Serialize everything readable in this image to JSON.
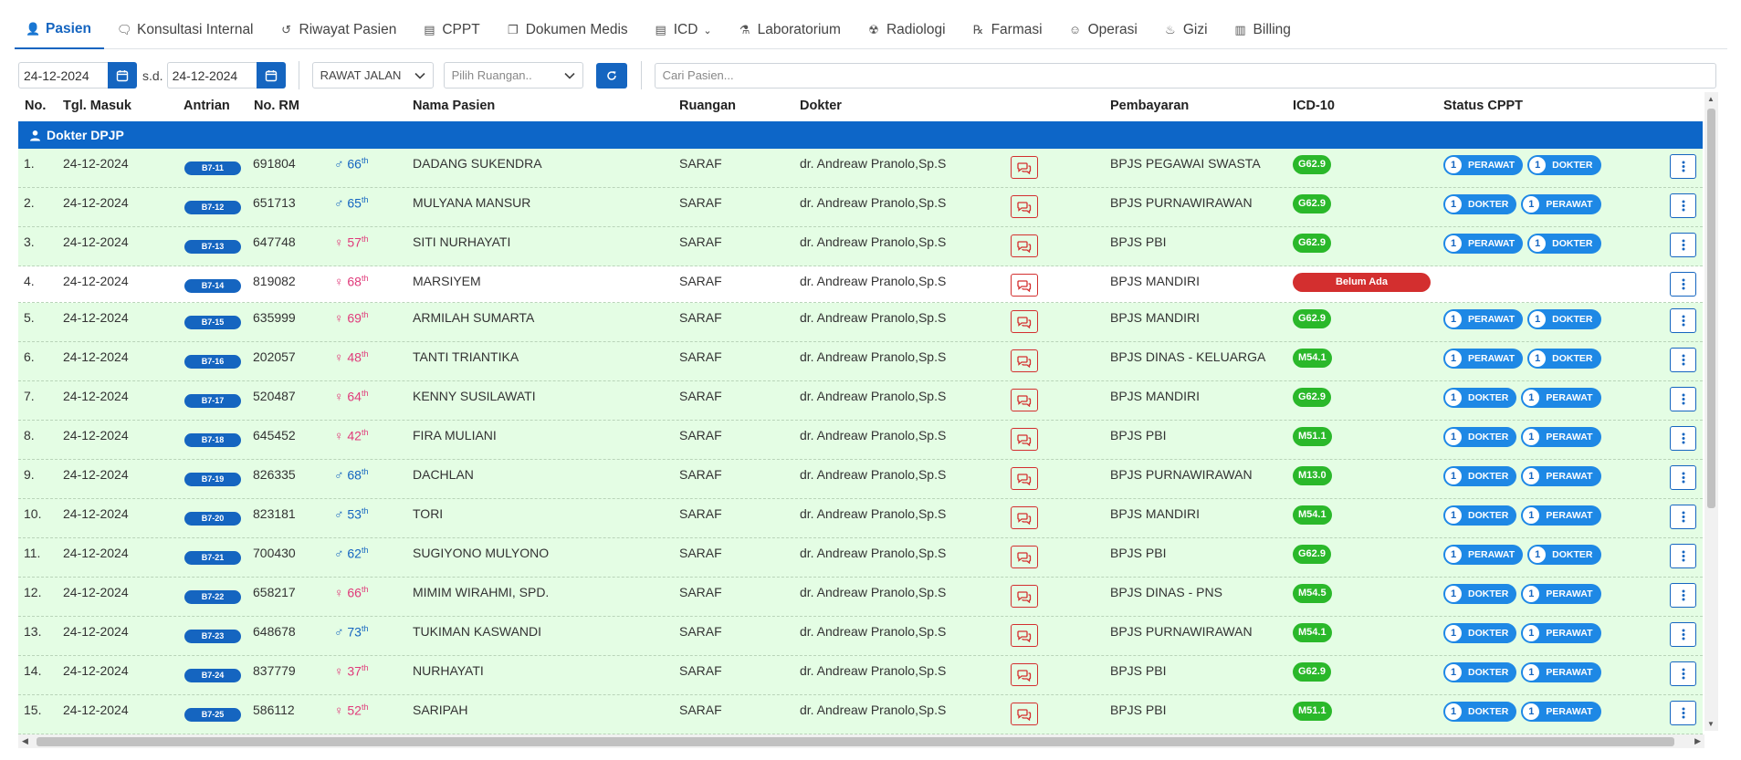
{
  "tabs": [
    {
      "label": "Pasien",
      "icon": "user-icon",
      "active": true
    },
    {
      "label": "Konsultasi Internal",
      "icon": "chat-icon"
    },
    {
      "label": "Riwayat Pasien",
      "icon": "history-icon"
    },
    {
      "label": "CPPT",
      "icon": "file-icon"
    },
    {
      "label": "Dokumen Medis",
      "icon": "documents-icon"
    },
    {
      "label": "ICD",
      "icon": "file-medical-icon",
      "dropdown": true
    },
    {
      "label": "Laboratorium",
      "icon": "flask-icon"
    },
    {
      "label": "Radiologi",
      "icon": "radiation-icon"
    },
    {
      "label": "Farmasi",
      "icon": "prescription-icon"
    },
    {
      "label": "Operasi",
      "icon": "surgeon-icon"
    },
    {
      "label": "Gizi",
      "icon": "food-icon"
    },
    {
      "label": "Billing",
      "icon": "receipt-icon"
    }
  ],
  "filters": {
    "date_from": "24-12-2024",
    "date_to": "24-12-2024",
    "sd_label": "s.d.",
    "jenis_rawat": "RAWAT JALAN",
    "ruangan_placeholder": "Pilih Ruangan..",
    "search_placeholder": "Cari Pasien..."
  },
  "columns": {
    "no": "No.",
    "tgl": "Tgl. Masuk",
    "antrian": "Antrian",
    "rm": "No. RM",
    "nama": "Nama Pasien",
    "ruangan": "Ruangan",
    "dokter": "Dokter",
    "pembayaran": "Pembayaran",
    "icd": "ICD-10",
    "status": "Status CPPT"
  },
  "group_label": "Dokter DPJP",
  "rows": [
    {
      "no": "1.",
      "tgl": "24-12-2024",
      "antrian": "B7-11",
      "rm": "691804",
      "sex": "m",
      "age": "66",
      "nama": "DADANG SUKENDRA",
      "ruangan": "SARAF",
      "dokter": "dr. Andreaw Pranolo,Sp.S",
      "bayar": "BPJS PEGAWAI SWASTA",
      "icd": "G62.9",
      "status": [
        {
          "n": "1",
          "label": "PERAWAT"
        },
        {
          "n": "1",
          "label": "DOKTER"
        }
      ]
    },
    {
      "no": "2.",
      "tgl": "24-12-2024",
      "antrian": "B7-12",
      "rm": "651713",
      "sex": "m",
      "age": "65",
      "nama": "MULYANA MANSUR",
      "ruangan": "SARAF",
      "dokter": "dr. Andreaw Pranolo,Sp.S",
      "bayar": "BPJS PURNAWIRAWAN",
      "icd": "G62.9",
      "status": [
        {
          "n": "1",
          "label": "DOKTER"
        },
        {
          "n": "1",
          "label": "PERAWAT"
        }
      ]
    },
    {
      "no": "3.",
      "tgl": "24-12-2024",
      "antrian": "B7-13",
      "rm": "647748",
      "sex": "f",
      "age": "57",
      "nama": "SITI NURHAYATI",
      "ruangan": "SARAF",
      "dokter": "dr. Andreaw Pranolo,Sp.S",
      "bayar": "BPJS PBI",
      "icd": "G62.9",
      "status": [
        {
          "n": "1",
          "label": "PERAWAT"
        },
        {
          "n": "1",
          "label": "DOKTER"
        }
      ]
    },
    {
      "no": "4.",
      "tgl": "24-12-2024",
      "antrian": "B7-14",
      "rm": "819082",
      "sex": "f",
      "age": "68",
      "nama": "MARSIYEM",
      "ruangan": "SARAF",
      "dokter": "dr. Andreaw Pranolo,Sp.S",
      "bayar": "BPJS MANDIRI",
      "icd": "Belum Ada",
      "icd_none": true,
      "status": []
    },
    {
      "no": "5.",
      "tgl": "24-12-2024",
      "antrian": "B7-15",
      "rm": "635999",
      "sex": "f",
      "age": "69",
      "nama": "ARMILAH SUMARTA",
      "ruangan": "SARAF",
      "dokter": "dr. Andreaw Pranolo,Sp.S",
      "bayar": "BPJS MANDIRI",
      "icd": "G62.9",
      "status": [
        {
          "n": "1",
          "label": "PERAWAT"
        },
        {
          "n": "1",
          "label": "DOKTER"
        }
      ]
    },
    {
      "no": "6.",
      "tgl": "24-12-2024",
      "antrian": "B7-16",
      "rm": "202057",
      "sex": "f",
      "age": "48",
      "nama": "TANTI TRIANTIKA",
      "ruangan": "SARAF",
      "dokter": "dr. Andreaw Pranolo,Sp.S",
      "bayar": "BPJS DINAS - KELUARGA",
      "icd": "M54.1",
      "status": [
        {
          "n": "1",
          "label": "PERAWAT"
        },
        {
          "n": "1",
          "label": "DOKTER"
        }
      ]
    },
    {
      "no": "7.",
      "tgl": "24-12-2024",
      "antrian": "B7-17",
      "rm": "520487",
      "sex": "f",
      "age": "64",
      "nama": "KENNY SUSILAWATI",
      "ruangan": "SARAF",
      "dokter": "dr. Andreaw Pranolo,Sp.S",
      "bayar": "BPJS MANDIRI",
      "icd": "G62.9",
      "status": [
        {
          "n": "1",
          "label": "DOKTER"
        },
        {
          "n": "1",
          "label": "PERAWAT"
        }
      ]
    },
    {
      "no": "8.",
      "tgl": "24-12-2024",
      "antrian": "B7-18",
      "rm": "645452",
      "sex": "f",
      "age": "42",
      "nama": "FIRA MULIANI",
      "ruangan": "SARAF",
      "dokter": "dr. Andreaw Pranolo,Sp.S",
      "bayar": "BPJS PBI",
      "icd": "M51.1",
      "status": [
        {
          "n": "1",
          "label": "DOKTER"
        },
        {
          "n": "1",
          "label": "PERAWAT"
        }
      ]
    },
    {
      "no": "9.",
      "tgl": "24-12-2024",
      "antrian": "B7-19",
      "rm": "826335",
      "sex": "m",
      "age": "68",
      "nama": "DACHLAN",
      "ruangan": "SARAF",
      "dokter": "dr. Andreaw Pranolo,Sp.S",
      "bayar": "BPJS PURNAWIRAWAN",
      "icd": "M13.0",
      "status": [
        {
          "n": "1",
          "label": "DOKTER"
        },
        {
          "n": "1",
          "label": "PERAWAT"
        }
      ]
    },
    {
      "no": "10.",
      "tgl": "24-12-2024",
      "antrian": "B7-20",
      "rm": "823181",
      "sex": "m",
      "age": "53",
      "nama": "TORI",
      "ruangan": "SARAF",
      "dokter": "dr. Andreaw Pranolo,Sp.S",
      "bayar": "BPJS MANDIRI",
      "icd": "M54.1",
      "status": [
        {
          "n": "1",
          "label": "DOKTER"
        },
        {
          "n": "1",
          "label": "PERAWAT"
        }
      ]
    },
    {
      "no": "11.",
      "tgl": "24-12-2024",
      "antrian": "B7-21",
      "rm": "700430",
      "sex": "m",
      "age": "62",
      "nama": "SUGIYONO MULYONO",
      "ruangan": "SARAF",
      "dokter": "dr. Andreaw Pranolo,Sp.S",
      "bayar": "BPJS PBI",
      "icd": "G62.9",
      "status": [
        {
          "n": "1",
          "label": "PERAWAT"
        },
        {
          "n": "1",
          "label": "DOKTER"
        }
      ]
    },
    {
      "no": "12.",
      "tgl": "24-12-2024",
      "antrian": "B7-22",
      "rm": "658217",
      "sex": "f",
      "age": "66",
      "nama": "MIMIM WIRAHMI, SPD.",
      "ruangan": "SARAF",
      "dokter": "dr. Andreaw Pranolo,Sp.S",
      "bayar": "BPJS DINAS - PNS",
      "icd": "M54.5",
      "status": [
        {
          "n": "1",
          "label": "DOKTER"
        },
        {
          "n": "1",
          "label": "PERAWAT"
        }
      ]
    },
    {
      "no": "13.",
      "tgl": "24-12-2024",
      "antrian": "B7-23",
      "rm": "648678",
      "sex": "m",
      "age": "73",
      "nama": "TUKIMAN KASWANDI",
      "ruangan": "SARAF",
      "dokter": "dr. Andreaw Pranolo,Sp.S",
      "bayar": "BPJS PURNAWIRAWAN",
      "icd": "M54.1",
      "status": [
        {
          "n": "1",
          "label": "DOKTER"
        },
        {
          "n": "1",
          "label": "PERAWAT"
        }
      ]
    },
    {
      "no": "14.",
      "tgl": "24-12-2024",
      "antrian": "B7-24",
      "rm": "837779",
      "sex": "f",
      "age": "37",
      "nama": "NURHAYATI",
      "ruangan": "SARAF",
      "dokter": "dr. Andreaw Pranolo,Sp.S",
      "bayar": "BPJS PBI",
      "icd": "G62.9",
      "status": [
        {
          "n": "1",
          "label": "DOKTER"
        },
        {
          "n": "1",
          "label": "PERAWAT"
        }
      ]
    },
    {
      "no": "15.",
      "tgl": "24-12-2024",
      "antrian": "B7-25",
      "rm": "586112",
      "sex": "f",
      "age": "52",
      "nama": "SARIPAH",
      "ruangan": "SARAF",
      "dokter": "dr. Andreaw Pranolo,Sp.S",
      "bayar": "BPJS PBI",
      "icd": "M51.1",
      "status": [
        {
          "n": "1",
          "label": "DOKTER"
        },
        {
          "n": "1",
          "label": "PERAWAT"
        }
      ]
    }
  ],
  "age_suffix": "th",
  "colors": {
    "primary": "#1565c0",
    "group_bg": "#0d66c8",
    "row_bg": "#e4fde4",
    "icd_green": "#2ab82a",
    "icd_missing": "#d32f2f",
    "female": "#e03a7a",
    "male": "#1565c0"
  }
}
